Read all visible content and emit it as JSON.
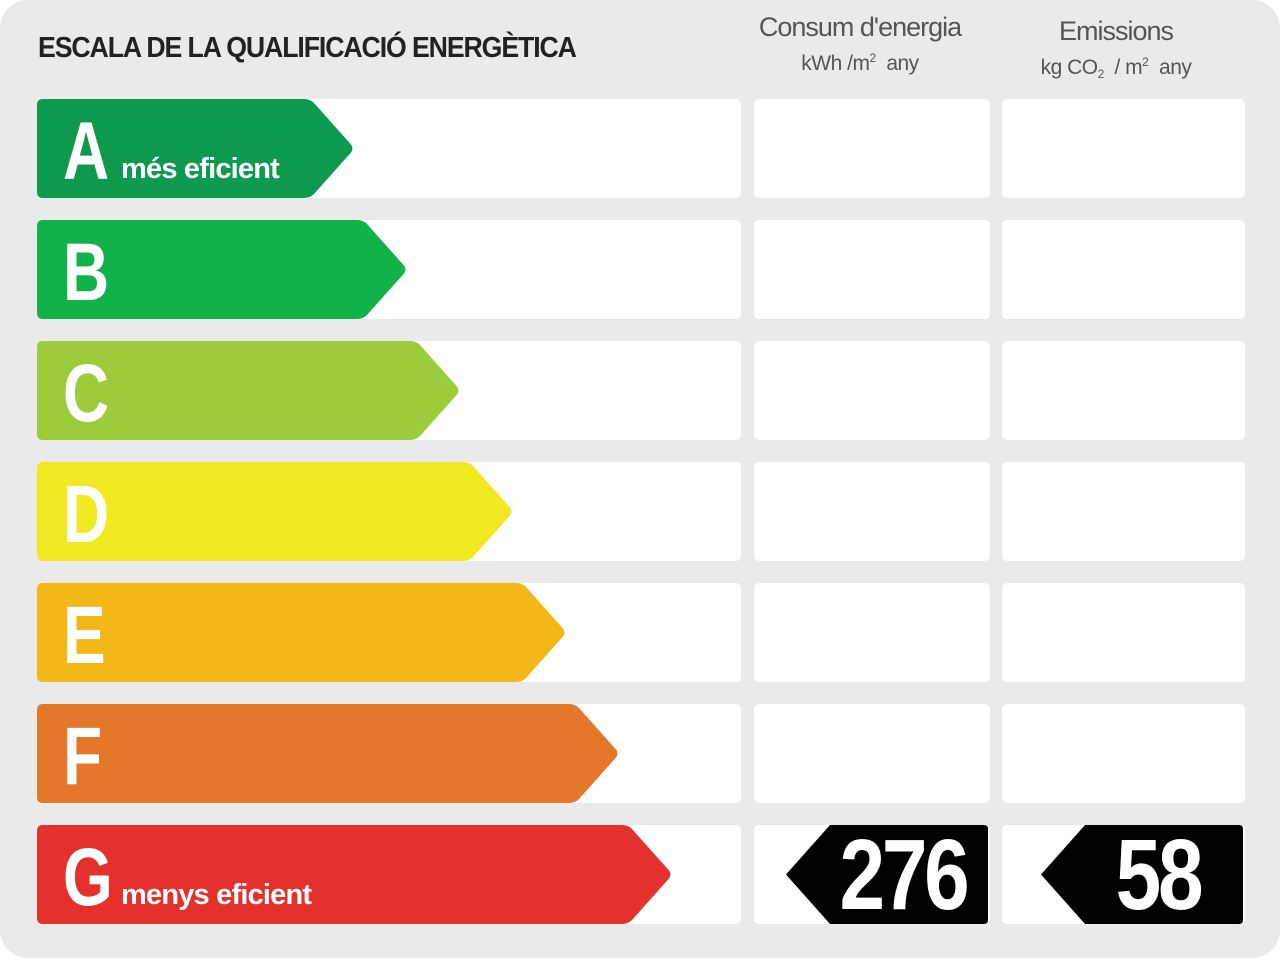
{
  "title": "ESCALA DE LA QUALIFICACIÓ ENERGÈTICA",
  "columns": {
    "consumption": {
      "title": "Consum d'energia",
      "unit_a": "kWh /m",
      "unit_sup": "2",
      "unit_b": "any"
    },
    "emissions": {
      "title": "Emissions",
      "unit_a": "kg CO",
      "unit_sub": "2",
      "unit_mid": "/ m",
      "unit_sup": "2",
      "unit_b": "any"
    }
  },
  "classes": [
    {
      "letter": "A",
      "sublabel": "més eficient",
      "color": "#0d9a4e"
    },
    {
      "letter": "B",
      "sublabel": "",
      "color": "#12b24b"
    },
    {
      "letter": "C",
      "sublabel": "",
      "color": "#9ccb3b"
    },
    {
      "letter": "D",
      "sublabel": "",
      "color": "#f0e921"
    },
    {
      "letter": "E",
      "sublabel": "",
      "color": "#f3b817"
    },
    {
      "letter": "F",
      "sublabel": "",
      "color": "#e3772a"
    },
    {
      "letter": "G",
      "sublabel": "menys eficient",
      "color": "#e5312d"
    }
  ],
  "rating": {
    "class": "G",
    "consumption_value": "276",
    "emissions_value": "58"
  }
}
